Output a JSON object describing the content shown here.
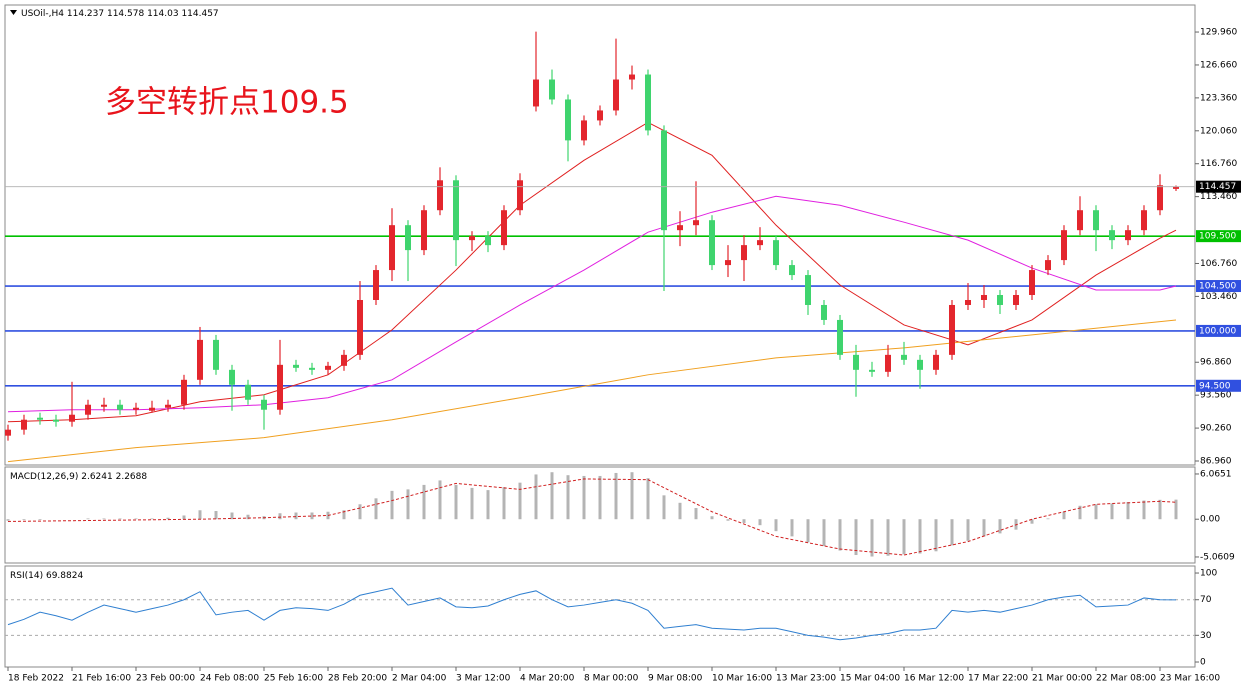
{
  "chart_data": [
    {
      "type": "candlestick",
      "symbol": "USOil-,H4",
      "annotation": "多空转折点109.5",
      "categories": [
        "18 Feb 2022",
        null,
        null,
        null,
        "21 Feb 16:00",
        null,
        null,
        null,
        "23 Feb 00:00",
        null,
        null,
        null,
        "24 Feb 08:00",
        null,
        null,
        null,
        "25 Feb 16:00",
        null,
        null,
        null,
        "28 Feb 20:00",
        null,
        null,
        null,
        "2 Mar 04:00",
        null,
        null,
        null,
        "3 Mar 12:00",
        null,
        null,
        null,
        "4 Mar 20:00",
        null,
        null,
        null,
        "8 Mar 00:00",
        null,
        null,
        null,
        "9 Mar 08:00",
        null,
        null,
        null,
        "10 Mar 16:00",
        null,
        null,
        null,
        "13 Mar 23:00",
        null,
        null,
        null,
        "15 Mar 04:00",
        null,
        null,
        null,
        "16 Mar 12:00",
        null,
        null,
        null,
        "17 Mar 22:00",
        null,
        null,
        null,
        "21 Mar 00:00",
        null,
        null,
        null,
        "22 Mar 08:00",
        null,
        null,
        null,
        "23 Mar 16:00",
        null
      ],
      "candles": [
        [
          89.5,
          90.6,
          89.0,
          90.1
        ],
        [
          90.1,
          91.6,
          89.6,
          91.1
        ],
        [
          91.3,
          91.8,
          90.6,
          91.1
        ],
        [
          91.1,
          91.6,
          90.4,
          90.9
        ],
        [
          90.9,
          94.9,
          90.4,
          91.6
        ],
        [
          91.6,
          93.1,
          91.1,
          92.6
        ],
        [
          92.4,
          93.3,
          91.9,
          92.6
        ],
        [
          92.6,
          93.1,
          91.6,
          92.1
        ],
        [
          92.1,
          92.8,
          91.6,
          92.3
        ],
        [
          92.0,
          93.0,
          91.8,
          92.3
        ],
        [
          92.3,
          93.1,
          91.9,
          92.6
        ],
        [
          92.6,
          95.6,
          92.1,
          95.1
        ],
        [
          95.1,
          100.4,
          94.6,
          99.1
        ],
        [
          99.1,
          99.6,
          95.6,
          96.1
        ],
        [
          96.1,
          96.6,
          92.0,
          94.6
        ],
        [
          94.6,
          95.1,
          92.6,
          93.1
        ],
        [
          93.1,
          93.6,
          90.1,
          92.1
        ],
        [
          92.1,
          99.1,
          91.6,
          96.6
        ],
        [
          96.6,
          97.1,
          95.9,
          96.3
        ],
        [
          96.3,
          96.8,
          95.6,
          96.1
        ],
        [
          96.1,
          96.9,
          95.6,
          96.5
        ],
        [
          96.5,
          98.1,
          96.0,
          97.6
        ],
        [
          97.6,
          105.0,
          97.1,
          103.1
        ],
        [
          103.1,
          106.6,
          102.6,
          106.1
        ],
        [
          106.1,
          112.3,
          105.0,
          110.6
        ],
        [
          110.6,
          111.1,
          105.0,
          108.1
        ],
        [
          108.1,
          112.6,
          107.6,
          112.1
        ],
        [
          112.1,
          116.4,
          111.6,
          115.1
        ],
        [
          115.1,
          115.6,
          106.5,
          109.1
        ],
        [
          109.1,
          110.0,
          108.0,
          109.5
        ],
        [
          109.5,
          110.0,
          107.9,
          108.6
        ],
        [
          108.6,
          112.6,
          108.1,
          112.1
        ],
        [
          112.1,
          115.8,
          111.6,
          115.1
        ],
        [
          122.5,
          130.0,
          122.0,
          125.2
        ],
        [
          125.2,
          126.2,
          122.7,
          123.2
        ],
        [
          123.2,
          123.7,
          117.0,
          119.1
        ],
        [
          119.1,
          121.6,
          118.6,
          121.1
        ],
        [
          121.1,
          122.6,
          120.6,
          122.1
        ],
        [
          122.1,
          129.3,
          121.6,
          125.2
        ],
        [
          125.2,
          126.6,
          124.2,
          125.7
        ],
        [
          125.7,
          126.2,
          119.6,
          120.1
        ],
        [
          120.1,
          120.6,
          104.0,
          110.1
        ],
        [
          110.1,
          112.0,
          108.5,
          110.6
        ],
        [
          110.6,
          115.0,
          109.6,
          111.1
        ],
        [
          111.1,
          111.6,
          106.1,
          106.6
        ],
        [
          106.6,
          108.6,
          105.4,
          107.1
        ],
        [
          107.1,
          109.6,
          105.0,
          108.6
        ],
        [
          108.6,
          110.4,
          108.1,
          109.1
        ],
        [
          109.1,
          109.6,
          106.1,
          106.6
        ],
        [
          106.6,
          107.1,
          105.1,
          105.6
        ],
        [
          105.6,
          106.1,
          101.6,
          102.6
        ],
        [
          102.6,
          103.1,
          100.6,
          101.1
        ],
        [
          101.1,
          101.6,
          97.1,
          97.6
        ],
        [
          97.6,
          98.6,
          93.4,
          96.1
        ],
        [
          96.1,
          96.9,
          95.4,
          95.9
        ],
        [
          95.9,
          98.6,
          95.4,
          97.6
        ],
        [
          97.6,
          98.9,
          96.6,
          97.1
        ],
        [
          97.1,
          97.6,
          94.2,
          96.1
        ],
        [
          96.1,
          98.1,
          95.6,
          97.6
        ],
        [
          97.6,
          103.1,
          97.1,
          102.6
        ],
        [
          102.6,
          104.8,
          102.1,
          103.1
        ],
        [
          103.1,
          104.6,
          102.3,
          103.6
        ],
        [
          103.6,
          104.1,
          101.7,
          102.6
        ],
        [
          102.6,
          104.1,
          102.1,
          103.6
        ],
        [
          103.6,
          106.6,
          103.1,
          106.1
        ],
        [
          106.1,
          107.6,
          105.6,
          107.1
        ],
        [
          107.1,
          110.6,
          106.6,
          110.1
        ],
        [
          110.1,
          113.5,
          109.6,
          112.1
        ],
        [
          112.1,
          112.6,
          108.0,
          110.1
        ],
        [
          110.1,
          110.6,
          108.2,
          109.1
        ],
        [
          109.1,
          110.6,
          108.6,
          110.1
        ],
        [
          110.1,
          112.6,
          109.6,
          112.1
        ],
        [
          112.1,
          115.7,
          111.6,
          114.6
        ],
        [
          114.237,
          114.578,
          114.03,
          114.457
        ]
      ],
      "up_color": "#e3262d",
      "down_color": "#3fd46e",
      "moving_averages": [
        {
          "color": "#e02020",
          "x": [
            0,
            4,
            8,
            12,
            16,
            20,
            24,
            28,
            32,
            36,
            40,
            44,
            48,
            52,
            56,
            60,
            64,
            68,
            72,
            73
          ],
          "values": [
            90.9,
            91.1,
            91.5,
            92.9,
            93.6,
            95.6,
            100.1,
            106.1,
            112.6,
            117.1,
            120.9,
            117.6,
            110.6,
            104.6,
            100.6,
            98.6,
            101.1,
            105.6,
            109.3,
            110.1
          ]
        },
        {
          "color": "#e020e0",
          "x": [
            0,
            4,
            8,
            12,
            16,
            20,
            24,
            28,
            32,
            36,
            40,
            44,
            48,
            52,
            56,
            60,
            64,
            68,
            72,
            73
          ],
          "values": [
            91.9,
            92.1,
            92.1,
            92.3,
            92.6,
            93.3,
            95.1,
            98.9,
            102.6,
            106.1,
            109.9,
            111.9,
            113.5,
            112.6,
            110.9,
            109.1,
            106.3,
            104.1,
            104.1,
            104.5
          ]
        },
        {
          "color": "#f0a020",
          "x": [
            0,
            8,
            16,
            24,
            32,
            40,
            48,
            56,
            64,
            73
          ],
          "values": [
            86.9,
            88.3,
            89.3,
            91.1,
            93.3,
            95.6,
            97.3,
            98.3,
            99.6,
            101.1
          ]
        }
      ],
      "levels": [
        {
          "value": 109.5,
          "label": "109.500",
          "color": "#00c000"
        },
        {
          "value": 104.5,
          "label": "104.500",
          "color": "#3050e0"
        },
        {
          "value": 100,
          "label": "100.000",
          "color": "#3050e0"
        },
        {
          "value": 94.5,
          "label": "94.500",
          "color": "#3050e0"
        }
      ],
      "current_price_color": "#000000",
      "ylim": [
        86.56,
        132.67
      ],
      "yticks": [
        {
          "value": 129.96,
          "label": "129.960"
        },
        {
          "value": 126.66,
          "label": "126.660"
        },
        {
          "value": 123.36,
          "label": "123.360"
        },
        {
          "value": 120.06,
          "label": "120.060"
        },
        {
          "value": 116.76,
          "label": "116.760"
        },
        {
          "value": 113.46,
          "label": "113.460"
        },
        {
          "value": 106.76,
          "label": "106.760"
        },
        {
          "value": 103.46,
          "label": "103.460"
        },
        {
          "value": 96.86,
          "label": "96.860"
        },
        {
          "value": 93.56,
          "label": "93.560"
        },
        {
          "value": 90.26,
          "label": "90.260"
        },
        {
          "value": 86.96,
          "label": "86.960"
        }
      ]
    },
    {
      "type": "macd",
      "title": "MACD(12,26,9)",
      "color": "#b4b4b4",
      "values": [
        -0.2,
        -0.1,
        -0.1,
        0,
        0,
        0.1,
        0.1,
        0.1,
        0.1,
        0.1,
        0.2,
        0.5,
        1.2,
        1.1,
        0.9,
        0.6,
        0.4,
        0.8,
        0.9,
        0.9,
        1.0,
        1.2,
        2.0,
        2.8,
        3.8,
        4.0,
        4.6,
        5.2,
        4.6,
        4.2,
        3.9,
        4.3,
        4.9,
        6.0,
        6.3,
        5.9,
        5.8,
        5.8,
        6.2,
        6.3,
        5.5,
        3.2,
        2.2,
        1.5,
        0.4,
        -0.2,
        -0.5,
        -0.8,
        -1.6,
        -2.3,
        -3.1,
        -3.6,
        -4.2,
        -4.8,
        -5.0,
        -4.9,
        -4.7,
        -4.6,
        -4.3,
        -3.5,
        -2.9,
        -2.3,
        -1.9,
        -1.4,
        -0.6,
        0.1,
        1.0,
        1.8,
        2.0,
        2.1,
        2.3,
        2.5,
        2.6,
        2.6241
      ],
      "signal": {
        "color": "#d02020",
        "x": [
          0,
          4,
          8,
          12,
          16,
          20,
          24,
          28,
          32,
          36,
          40,
          44,
          48,
          52,
          56,
          60,
          64,
          68,
          72,
          73
        ],
        "values": [
          -0.3,
          -0.2,
          -0.1,
          0.0,
          0.2,
          0.5,
          2.5,
          4.8,
          4.0,
          5.4,
          5.3,
          1.0,
          -2.3,
          -4.0,
          -4.8,
          -3.0,
          0.0,
          2.0,
          2.4,
          2.2688
        ]
      },
      "ylim": [
        -5.87,
        7.0
      ],
      "yticks": [
        6.0651,
        {
          "value": 0,
          "label": "0.00"
        },
        -5.0609
      ]
    },
    {
      "type": "rsi",
      "title": "RSI(14)",
      "color": "#2f7fd0",
      "values": [
        42,
        48,
        56,
        52,
        47,
        56,
        64,
        60,
        56,
        60,
        64,
        70,
        79,
        53,
        56,
        58,
        47,
        58,
        61,
        60,
        58,
        65,
        75,
        79,
        83,
        64,
        68,
        72,
        62,
        61,
        63,
        70,
        76,
        80,
        70,
        62,
        64,
        67,
        70,
        66,
        58,
        38,
        40,
        42,
        38,
        37,
        36,
        38,
        38,
        34,
        30,
        28,
        25,
        27,
        30,
        32,
        36,
        36,
        38,
        58,
        56,
        58,
        56,
        60,
        64,
        70,
        73,
        75,
        62,
        63,
        64,
        72,
        70,
        69.8824
      ],
      "levels": [
        70,
        30
      ],
      "ylim": [
        -5.6,
        107.9
      ],
      "yticks": [
        100,
        70,
        30,
        0
      ]
    }
  ]
}
